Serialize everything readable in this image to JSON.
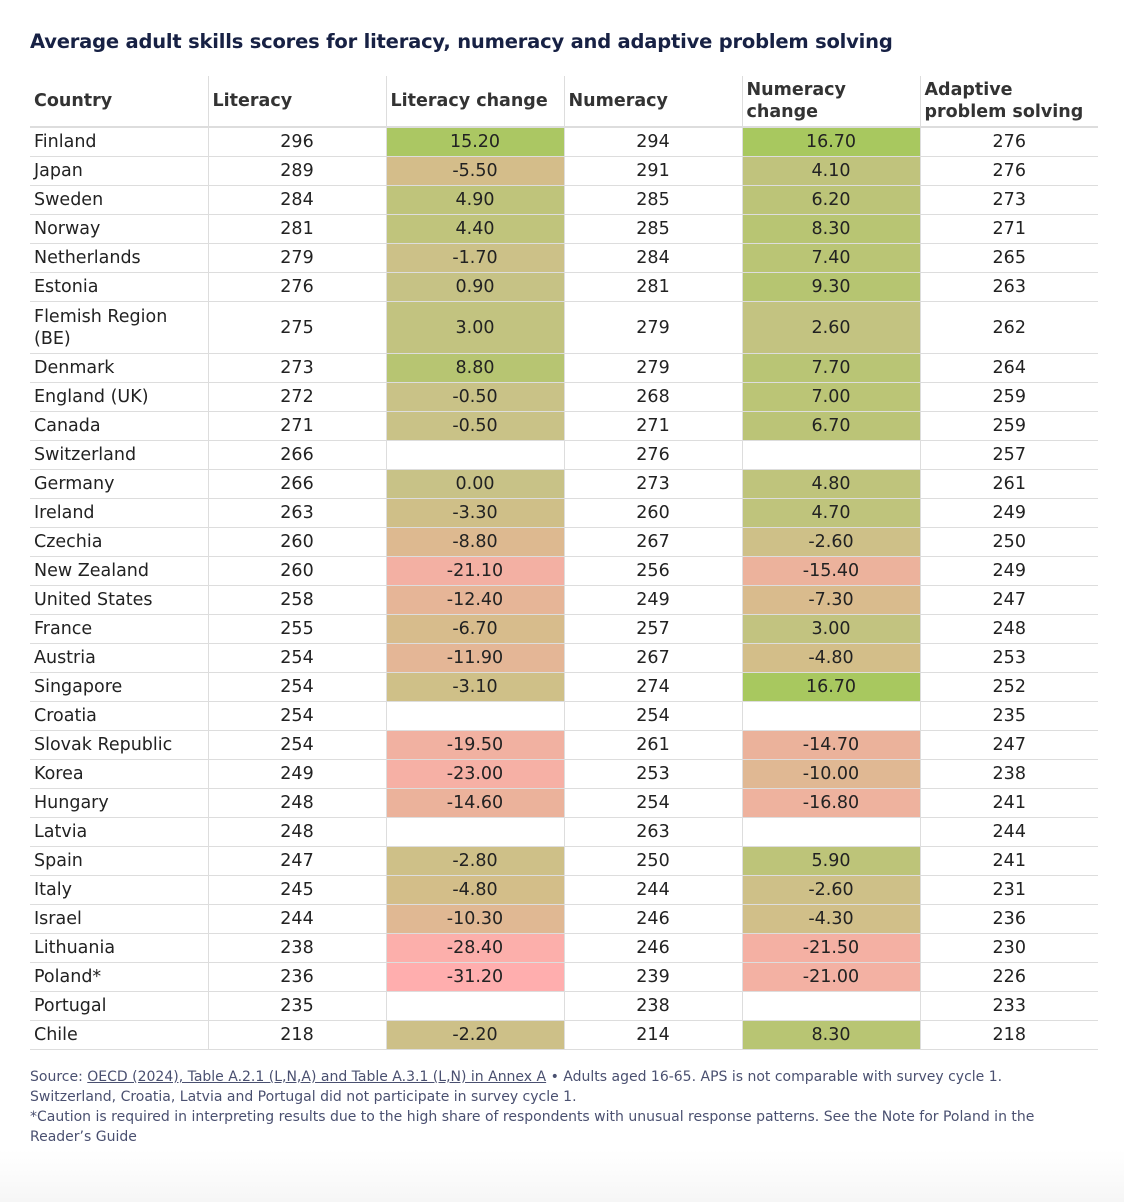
{
  "title": "Average adult skills scores for literacy, numeracy and adaptive problem solving",
  "chart_data": {
    "type": "table",
    "columns": [
      "Country",
      "Literacy",
      "Literacy change",
      "Numeracy",
      "Numeracy change",
      "Adaptive problem solving"
    ],
    "rows": [
      [
        "Finland",
        "296",
        "15.20",
        "294",
        "16.70",
        "276"
      ],
      [
        "Japan",
        "289",
        "-5.50",
        "291",
        "4.10",
        "276"
      ],
      [
        "Sweden",
        "284",
        "4.90",
        "285",
        "6.20",
        "273"
      ],
      [
        "Norway",
        "281",
        "4.40",
        "285",
        "8.30",
        "271"
      ],
      [
        "Netherlands",
        "279",
        "-1.70",
        "284",
        "7.40",
        "265"
      ],
      [
        "Estonia",
        "276",
        "0.90",
        "281",
        "9.30",
        "263"
      ],
      [
        "Flemish Region (BE)",
        "275",
        "3.00",
        "279",
        "2.60",
        "262"
      ],
      [
        "Denmark",
        "273",
        "8.80",
        "279",
        "7.70",
        "264"
      ],
      [
        "England (UK)",
        "272",
        "-0.50",
        "268",
        "7.00",
        "259"
      ],
      [
        "Canada",
        "271",
        "-0.50",
        "271",
        "6.70",
        "259"
      ],
      [
        "Switzerland",
        "266",
        "",
        "276",
        "",
        "257"
      ],
      [
        "Germany",
        "266",
        "0.00",
        "273",
        "4.80",
        "261"
      ],
      [
        "Ireland",
        "263",
        "-3.30",
        "260",
        "4.70",
        "249"
      ],
      [
        "Czechia",
        "260",
        "-8.80",
        "267",
        "-2.60",
        "250"
      ],
      [
        "New Zealand",
        "260",
        "-21.10",
        "256",
        "-15.40",
        "249"
      ],
      [
        "United States",
        "258",
        "-12.40",
        "249",
        "-7.30",
        "247"
      ],
      [
        "France",
        "255",
        "-6.70",
        "257",
        "3.00",
        "248"
      ],
      [
        "Austria",
        "254",
        "-11.90",
        "267",
        "-4.80",
        "253"
      ],
      [
        "Singapore",
        "254",
        "-3.10",
        "274",
        "16.70",
        "252"
      ],
      [
        "Croatia",
        "254",
        "",
        "254",
        "",
        "235"
      ],
      [
        "Slovak Republic",
        "254",
        "-19.50",
        "261",
        "-14.70",
        "247"
      ],
      [
        "Korea",
        "249",
        "-23.00",
        "253",
        "-10.00",
        "238"
      ],
      [
        "Hungary",
        "248",
        "-14.60",
        "254",
        "-16.80",
        "241"
      ],
      [
        "Latvia",
        "248",
        "",
        "263",
        "",
        "244"
      ],
      [
        "Spain",
        "247",
        "-2.80",
        "250",
        "5.90",
        "241"
      ],
      [
        "Italy",
        "245",
        "-4.80",
        "244",
        "-2.60",
        "231"
      ],
      [
        "Israel",
        "244",
        "-10.30",
        "246",
        "-4.30",
        "236"
      ],
      [
        "Lithuania",
        "238",
        "-28.40",
        "246",
        "-21.50",
        "230"
      ],
      [
        "Poland*",
        "236",
        "-31.20",
        "239",
        "-21.00",
        "226"
      ],
      [
        "Portugal",
        "235",
        "",
        "238",
        "",
        "233"
      ],
      [
        "Chile",
        "218",
        "-2.20",
        "214",
        "8.30",
        "218"
      ]
    ],
    "color_scale": {
      "negative": "#ffadad",
      "neutral": "#c8c286",
      "positive": "#a8c85f"
    }
  },
  "footer": {
    "source_label": "Source: ",
    "source_link": "OECD (2024), Table A.2.1 (L,N,A) and Table A.3.1 (L,N) in Annex A",
    "source_note": " • Adults aged 16-65. APS is not comparable with survey cycle 1. Switzerland, Croatia, Latvia and Portugal did not participate in survey cycle 1.",
    "caution": "*Caution is required in interpreting results due to the high share of respondents with unusual response patterns. See the Note for Poland in the Reader’s Guide"
  }
}
